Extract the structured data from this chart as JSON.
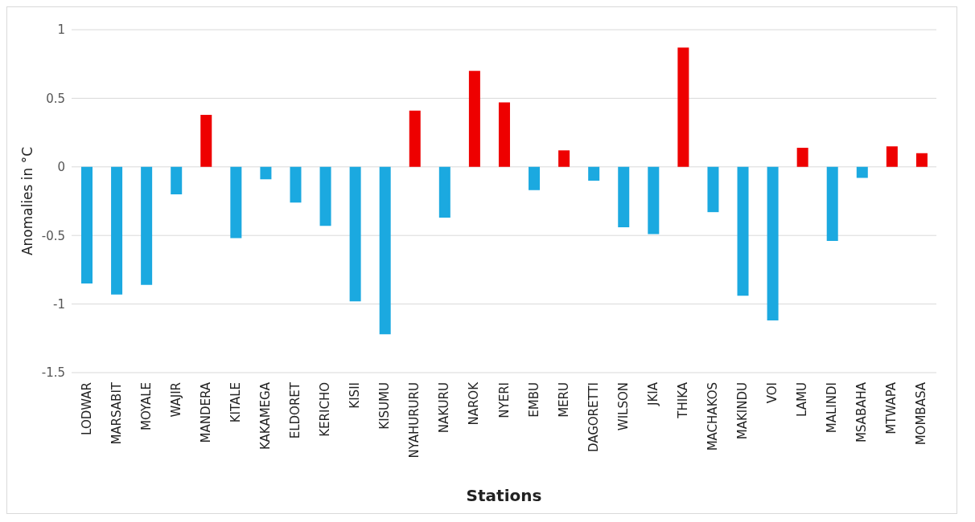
{
  "chart_data": {
    "type": "bar",
    "categories": [
      "LODWAR",
      "MARSABIT",
      "MOYALE",
      "WAJIR",
      "MANDERA",
      "KITALE",
      "KAKAMEGA",
      "ELDORET",
      "KERICHO",
      "KISII",
      "KISUMU",
      "NYAHURURU",
      "NAKURU",
      "NAROK",
      "NYERI",
      "EMBU",
      "MERU",
      "DAGORETTI",
      "WILSON",
      "JKIA",
      "THIKA",
      "MACHAKOS",
      "MAKINDU",
      "VOI",
      "LAMU",
      "MALINDI",
      "MSABAHA",
      "MTWAPA",
      "MOMBASA"
    ],
    "values": [
      -0.85,
      -0.93,
      -0.86,
      -0.2,
      0.38,
      -0.52,
      -0.09,
      -0.26,
      -0.43,
      -0.98,
      -1.22,
      0.41,
      -0.37,
      0.7,
      0.47,
      -0.17,
      0.12,
      -0.1,
      -0.44,
      -0.49,
      0.87,
      -0.33,
      -0.94,
      -1.12,
      0.14,
      -0.54,
      -0.08,
      0.15,
      0.1
    ],
    "colors": [
      "#1ba9e0",
      "#1ba9e0",
      "#1ba9e0",
      "#1ba9e0",
      "#ee0000",
      "#1ba9e0",
      "#1ba9e0",
      "#1ba9e0",
      "#1ba9e0",
      "#1ba9e0",
      "#1ba9e0",
      "#ee0000",
      "#1ba9e0",
      "#ee0000",
      "#ee0000",
      "#1ba9e0",
      "#ee0000",
      "#1ba9e0",
      "#1ba9e0",
      "#1ba9e0",
      "#ee0000",
      "#1ba9e0",
      "#1ba9e0",
      "#1ba9e0",
      "#ee0000",
      "#1ba9e0",
      "#1ba9e0",
      "#ee0000",
      "#ee0000"
    ],
    "xlabel": "Stations",
    "ylabel": "Anomalies in °C",
    "ylim": [
      -1.5,
      1
    ],
    "yticks": [
      -1.5,
      -1,
      -0.5,
      0,
      0.5,
      1
    ],
    "grid": "y",
    "legend": false
  }
}
